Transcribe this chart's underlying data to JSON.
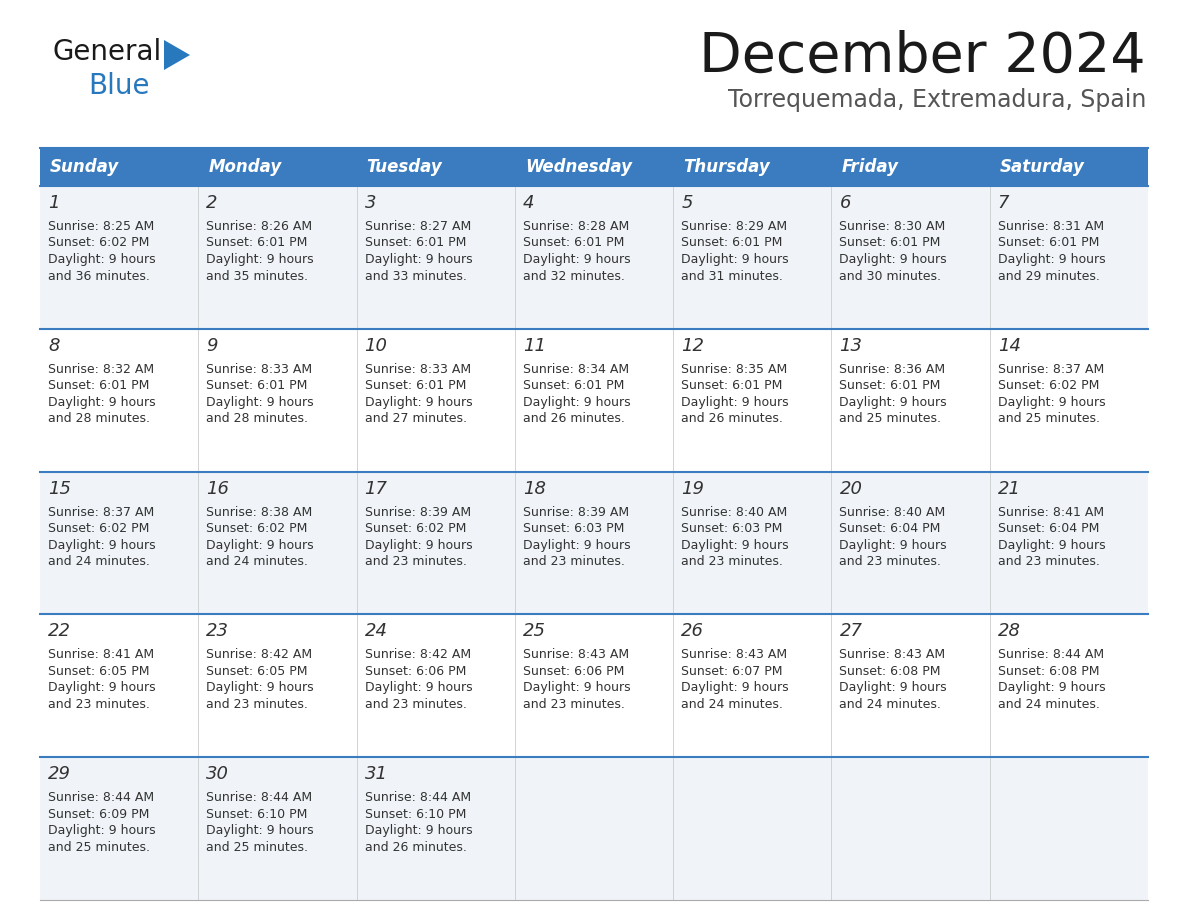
{
  "title": "December 2024",
  "subtitle": "Torrequemada, Extremadura, Spain",
  "header_color": "#3a7cbf",
  "header_text_color": "#ffffff",
  "row_bg_light": "#f0f4f8",
  "row_bg_white": "#ffffff",
  "divider_color": "#3a7cbf",
  "text_color": "#333333",
  "days_of_week": [
    "Sunday",
    "Monday",
    "Tuesday",
    "Wednesday",
    "Thursday",
    "Friday",
    "Saturday"
  ],
  "weeks": [
    [
      {
        "day": "1",
        "sunrise": "8:25 AM",
        "sunset": "6:02 PM",
        "dl1": "Daylight: 9 hours",
        "dl2": "and 36 minutes."
      },
      {
        "day": "2",
        "sunrise": "8:26 AM",
        "sunset": "6:01 PM",
        "dl1": "Daylight: 9 hours",
        "dl2": "and 35 minutes."
      },
      {
        "day": "3",
        "sunrise": "8:27 AM",
        "sunset": "6:01 PM",
        "dl1": "Daylight: 9 hours",
        "dl2": "and 33 minutes."
      },
      {
        "day": "4",
        "sunrise": "8:28 AM",
        "sunset": "6:01 PM",
        "dl1": "Daylight: 9 hours",
        "dl2": "and 32 minutes."
      },
      {
        "day": "5",
        "sunrise": "8:29 AM",
        "sunset": "6:01 PM",
        "dl1": "Daylight: 9 hours",
        "dl2": "and 31 minutes."
      },
      {
        "day": "6",
        "sunrise": "8:30 AM",
        "sunset": "6:01 PM",
        "dl1": "Daylight: 9 hours",
        "dl2": "and 30 minutes."
      },
      {
        "day": "7",
        "sunrise": "8:31 AM",
        "sunset": "6:01 PM",
        "dl1": "Daylight: 9 hours",
        "dl2": "and 29 minutes."
      }
    ],
    [
      {
        "day": "8",
        "sunrise": "8:32 AM",
        "sunset": "6:01 PM",
        "dl1": "Daylight: 9 hours",
        "dl2": "and 28 minutes."
      },
      {
        "day": "9",
        "sunrise": "8:33 AM",
        "sunset": "6:01 PM",
        "dl1": "Daylight: 9 hours",
        "dl2": "and 28 minutes."
      },
      {
        "day": "10",
        "sunrise": "8:33 AM",
        "sunset": "6:01 PM",
        "dl1": "Daylight: 9 hours",
        "dl2": "and 27 minutes."
      },
      {
        "day": "11",
        "sunrise": "8:34 AM",
        "sunset": "6:01 PM",
        "dl1": "Daylight: 9 hours",
        "dl2": "and 26 minutes."
      },
      {
        "day": "12",
        "sunrise": "8:35 AM",
        "sunset": "6:01 PM",
        "dl1": "Daylight: 9 hours",
        "dl2": "and 26 minutes."
      },
      {
        "day": "13",
        "sunrise": "8:36 AM",
        "sunset": "6:01 PM",
        "dl1": "Daylight: 9 hours",
        "dl2": "and 25 minutes."
      },
      {
        "day": "14",
        "sunrise": "8:37 AM",
        "sunset": "6:02 PM",
        "dl1": "Daylight: 9 hours",
        "dl2": "and 25 minutes."
      }
    ],
    [
      {
        "day": "15",
        "sunrise": "8:37 AM",
        "sunset": "6:02 PM",
        "dl1": "Daylight: 9 hours",
        "dl2": "and 24 minutes."
      },
      {
        "day": "16",
        "sunrise": "8:38 AM",
        "sunset": "6:02 PM",
        "dl1": "Daylight: 9 hours",
        "dl2": "and 24 minutes."
      },
      {
        "day": "17",
        "sunrise": "8:39 AM",
        "sunset": "6:02 PM",
        "dl1": "Daylight: 9 hours",
        "dl2": "and 23 minutes."
      },
      {
        "day": "18",
        "sunrise": "8:39 AM",
        "sunset": "6:03 PM",
        "dl1": "Daylight: 9 hours",
        "dl2": "and 23 minutes."
      },
      {
        "day": "19",
        "sunrise": "8:40 AM",
        "sunset": "6:03 PM",
        "dl1": "Daylight: 9 hours",
        "dl2": "and 23 minutes."
      },
      {
        "day": "20",
        "sunrise": "8:40 AM",
        "sunset": "6:04 PM",
        "dl1": "Daylight: 9 hours",
        "dl2": "and 23 minutes."
      },
      {
        "day": "21",
        "sunrise": "8:41 AM",
        "sunset": "6:04 PM",
        "dl1": "Daylight: 9 hours",
        "dl2": "and 23 minutes."
      }
    ],
    [
      {
        "day": "22",
        "sunrise": "8:41 AM",
        "sunset": "6:05 PM",
        "dl1": "Daylight: 9 hours",
        "dl2": "and 23 minutes."
      },
      {
        "day": "23",
        "sunrise": "8:42 AM",
        "sunset": "6:05 PM",
        "dl1": "Daylight: 9 hours",
        "dl2": "and 23 minutes."
      },
      {
        "day": "24",
        "sunrise": "8:42 AM",
        "sunset": "6:06 PM",
        "dl1": "Daylight: 9 hours",
        "dl2": "and 23 minutes."
      },
      {
        "day": "25",
        "sunrise": "8:43 AM",
        "sunset": "6:06 PM",
        "dl1": "Daylight: 9 hours",
        "dl2": "and 23 minutes."
      },
      {
        "day": "26",
        "sunrise": "8:43 AM",
        "sunset": "6:07 PM",
        "dl1": "Daylight: 9 hours",
        "dl2": "and 24 minutes."
      },
      {
        "day": "27",
        "sunrise": "8:43 AM",
        "sunset": "6:08 PM",
        "dl1": "Daylight: 9 hours",
        "dl2": "and 24 minutes."
      },
      {
        "day": "28",
        "sunrise": "8:44 AM",
        "sunset": "6:08 PM",
        "dl1": "Daylight: 9 hours",
        "dl2": "and 24 minutes."
      }
    ],
    [
      {
        "day": "29",
        "sunrise": "8:44 AM",
        "sunset": "6:09 PM",
        "dl1": "Daylight: 9 hours",
        "dl2": "and 25 minutes."
      },
      {
        "day": "30",
        "sunrise": "8:44 AM",
        "sunset": "6:10 PM",
        "dl1": "Daylight: 9 hours",
        "dl2": "and 25 minutes."
      },
      {
        "day": "31",
        "sunrise": "8:44 AM",
        "sunset": "6:10 PM",
        "dl1": "Daylight: 9 hours",
        "dl2": "and 26 minutes."
      },
      null,
      null,
      null,
      null
    ]
  ],
  "logo_general_color": "#1a1a1a",
  "logo_blue_color": "#2878be",
  "logo_triangle_color": "#2878be",
  "title_fontsize": 40,
  "subtitle_fontsize": 17,
  "header_fontsize": 12,
  "day_num_fontsize": 13,
  "cell_text_fontsize": 9
}
